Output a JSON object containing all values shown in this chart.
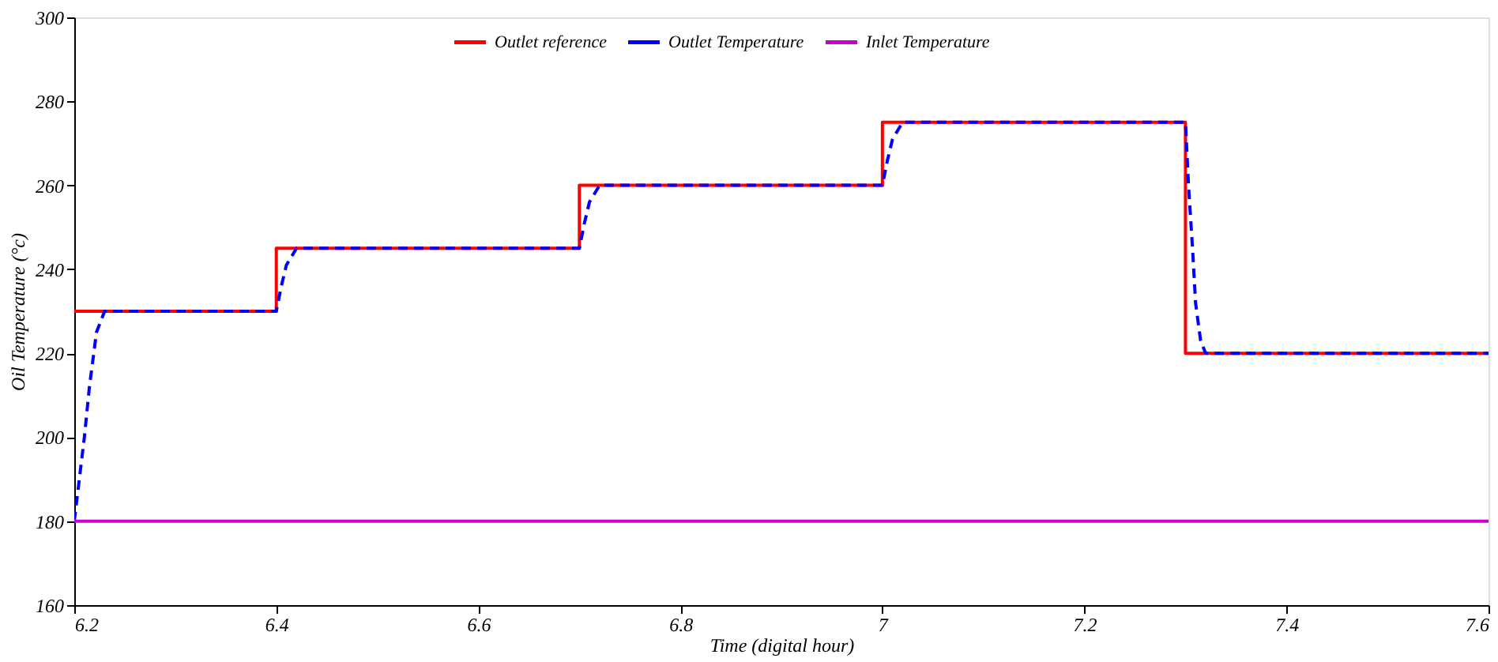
{
  "chart_data": {
    "type": "line",
    "xlabel": "Time (digital hour)",
    "ylabel": "Oil Temperature (°c)",
    "xlim": [
      6.2,
      7.6
    ],
    "xticks": [
      6.2,
      6.4,
      6.6,
      6.8,
      7,
      7.2,
      7.4,
      7.6
    ],
    "ylim": [
      160,
      300
    ],
    "yticks": [
      160,
      180,
      200,
      220,
      240,
      260,
      280,
      300
    ],
    "grid": false,
    "legend": "top",
    "marker": "none",
    "series": [
      {
        "name": "Outlet reference",
        "color": "#ff0000",
        "line_style": "solid",
        "x": [
          6.2,
          6.4,
          6.4,
          6.7,
          6.7,
          7.0,
          7.0,
          7.3,
          7.3,
          7.6
        ],
        "values": [
          230,
          230,
          245,
          245,
          260,
          260,
          275,
          275,
          220,
          220
        ]
      },
      {
        "name": "Outlet Temperature",
        "color": "#0000ff",
        "line_style": "dashed",
        "x": [
          6.2,
          6.205,
          6.21,
          6.215,
          6.222,
          6.23,
          6.4,
          6.405,
          6.41,
          6.42,
          6.7,
          6.705,
          6.71,
          6.72,
          7.0,
          7.005,
          7.01,
          7.02,
          7.3,
          7.303,
          7.307,
          7.31,
          7.315,
          7.32,
          7.6
        ],
        "values": [
          180,
          190,
          200,
          212,
          225,
          230,
          230,
          236,
          241,
          245,
          245,
          251,
          256,
          260,
          260,
          266,
          271,
          275,
          275,
          260,
          245,
          232,
          223,
          220,
          220
        ]
      },
      {
        "name": "Inlet Temperature",
        "color": "#cc00cc",
        "line_style": "solid",
        "x": [
          6.2,
          7.6
        ],
        "values": [
          180,
          180
        ]
      }
    ]
  }
}
